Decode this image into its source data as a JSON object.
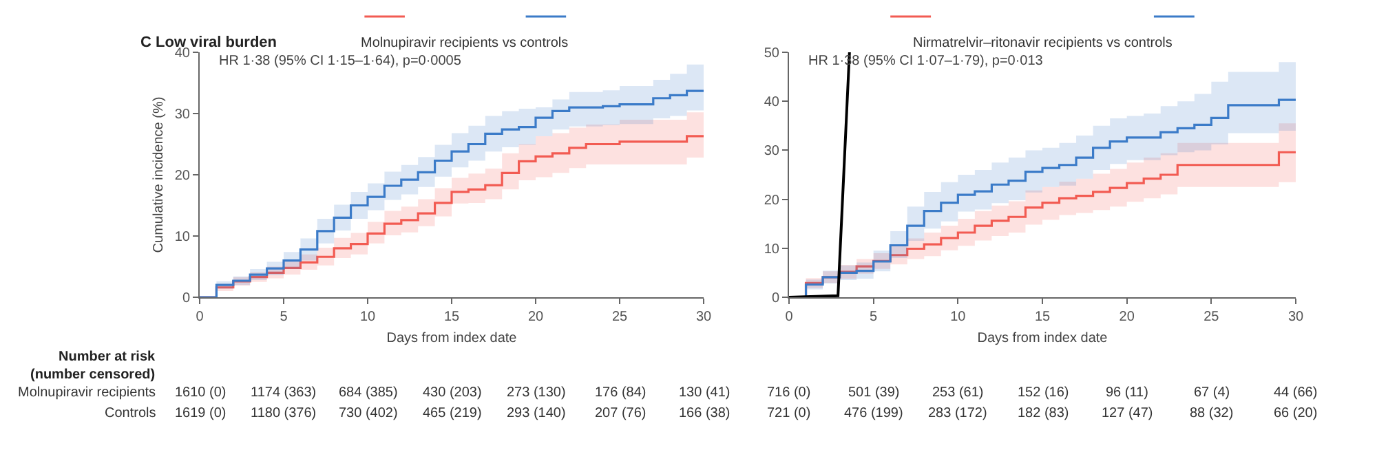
{
  "chart_data": [
    {
      "type": "step",
      "title": "C Low viral burden",
      "legend_title": "Molnupiravir recipients vs controls",
      "xlabel": "Days from index date",
      "ylabel": "Cumulative incidence (%)",
      "xlim": [
        0,
        30
      ],
      "xticks": [
        0,
        5,
        10,
        15,
        20,
        25,
        30
      ],
      "ylim": [
        0,
        40
      ],
      "yticks": [
        0,
        10,
        20,
        30,
        40
      ],
      "grid": false,
      "series": [
        {
          "color": "#f25b52",
          "x": [
            0,
            1,
            2,
            3,
            4,
            5,
            6,
            7,
            8,
            9,
            10,
            11,
            12,
            13,
            14,
            15,
            16,
            17,
            18,
            19,
            20,
            21,
            22,
            23,
            25,
            29,
            30
          ],
          "values": [
            0,
            1.6,
            2.6,
            3.3,
            4.0,
            4.8,
            5.7,
            6.6,
            8.0,
            8.7,
            10.4,
            12.0,
            12.6,
            13.7,
            15.4,
            17.2,
            17.6,
            18.3,
            20.3,
            22.2,
            23.0,
            23.5,
            24.4,
            25.0,
            25.4,
            26.3,
            26.3
          ],
          "upper": [
            0,
            2.2,
            3.3,
            4.1,
            5.0,
            6.0,
            7.0,
            8.1,
            9.7,
            10.5,
            12.3,
            14.1,
            14.8,
            16.0,
            17.8,
            19.5,
            20.2,
            21.0,
            23.5,
            25.0,
            26.3,
            26.8,
            27.7,
            28.2,
            29.0,
            30.2,
            30.2
          ],
          "lower": [
            0,
            1.0,
            1.9,
            2.5,
            3.1,
            3.7,
            4.5,
            5.2,
            6.4,
            7.0,
            8.8,
            10.1,
            10.6,
            11.6,
            13.2,
            15.3,
            15.4,
            16.0,
            17.6,
            19.1,
            19.6,
            20.3,
            21.1,
            21.7,
            21.7,
            22.8,
            22.8
          ]
        },
        {
          "color": "#3b7bc8",
          "x": [
            0,
            1,
            2,
            3,
            4,
            5,
            6,
            7,
            8,
            9,
            10,
            11,
            12,
            13,
            14,
            15,
            16,
            17,
            18,
            19,
            20,
            21,
            22,
            24,
            25,
            27,
            28,
            29,
            30
          ],
          "values": [
            0,
            2.0,
            2.7,
            3.7,
            4.7,
            6.0,
            7.8,
            10.8,
            13.0,
            15.0,
            16.4,
            18.2,
            19.2,
            20.4,
            22.3,
            23.8,
            25.0,
            26.7,
            27.4,
            27.8,
            29.3,
            30.4,
            31.0,
            31.2,
            31.5,
            32.5,
            33.0,
            33.7,
            33.7
          ],
          "upper": [
            0,
            2.6,
            3.4,
            4.6,
            5.8,
            7.4,
            9.6,
            12.8,
            15.1,
            17.2,
            18.6,
            20.5,
            21.6,
            22.9,
            24.9,
            26.8,
            28.0,
            29.6,
            30.4,
            30.8,
            31.0,
            32.3,
            33.5,
            33.8,
            34.5,
            35.5,
            36.5,
            38.0,
            38.0
          ],
          "lower": [
            0,
            1.4,
            2.0,
            2.8,
            3.6,
            4.6,
            6.0,
            8.8,
            10.9,
            12.8,
            14.2,
            15.9,
            16.8,
            18.0,
            19.7,
            21.2,
            22.3,
            23.8,
            24.5,
            24.9,
            26.3,
            27.4,
            27.9,
            28.1,
            28.3,
            29.2,
            29.6,
            30.5,
            30.5
          ]
        }
      ],
      "annotations": [
        "HR 1·38 (95% CI 1·15–1·64), p=0·0005",
        "Number at risk\n(number censored)",
        "Molnupiravir recipients",
        "Controls",
        "1610 (0)",
        "1174 (363)",
        "684 (385)",
        "430 (203)",
        "273 (130)",
        "176 (84)",
        "130 (41)",
        "1619 (0)",
        "1180 (376)",
        "730 (402)",
        "465 (219)",
        "293 (140)",
        "207 (76)",
        "166 (38)"
      ]
    },
    {
      "type": "step",
      "legend_title": "Nirmatrelvir–ritonavir recipients vs controls",
      "xlabel": "Days from index date",
      "xlim": [
        0,
        30
      ],
      "xticks": [
        0,
        5,
        10,
        15,
        20,
        25,
        30
      ],
      "ylim": [
        0,
        50
      ],
      "yticks": [
        0,
        10,
        20,
        30,
        40,
        50
      ],
      "grid": false,
      "series": [
        {
          "color": "#f25b52",
          "x": [
            0,
            1,
            2,
            3,
            4,
            5,
            6,
            7,
            8,
            9,
            10,
            11,
            12,
            13,
            14,
            15,
            16,
            17,
            18,
            19,
            20,
            21,
            22,
            23,
            29,
            30
          ],
          "values": [
            0,
            2.9,
            4.1,
            5.2,
            6.3,
            7.4,
            8.6,
            9.9,
            10.8,
            12.1,
            13.2,
            14.6,
            15.6,
            16.4,
            18.3,
            19.3,
            20.2,
            20.7,
            21.5,
            22.3,
            23.3,
            24.2,
            25.0,
            27.0,
            29.6,
            29.6
          ],
          "upper": [
            0,
            3.9,
            5.3,
            6.6,
            7.8,
            9.0,
            10.5,
            12.0,
            13.2,
            14.6,
            16.0,
            17.6,
            18.7,
            19.6,
            21.8,
            22.5,
            23.6,
            24.2,
            25.2,
            26.2,
            27.5,
            28.5,
            29.4,
            31.5,
            35.5,
            35.5
          ],
          "lower": [
            0,
            1.9,
            2.9,
            3.8,
            4.8,
            5.8,
            6.7,
            7.8,
            8.4,
            9.6,
            10.5,
            11.6,
            12.5,
            13.2,
            14.8,
            15.8,
            16.8,
            17.2,
            17.8,
            18.5,
            19.5,
            20.2,
            21.0,
            22.5,
            23.5,
            23.5
          ]
        },
        {
          "color": "#3b7bc8",
          "x": [
            0,
            1,
            2,
            3,
            4,
            5,
            6,
            7,
            8,
            9,
            10,
            11,
            12,
            13,
            14,
            15,
            16,
            17,
            18,
            19,
            20,
            21,
            22,
            23,
            24,
            25,
            26,
            29,
            30
          ],
          "values": [
            0,
            2.6,
            4.1,
            5.0,
            5.4,
            7.3,
            10.6,
            14.6,
            17.6,
            19.3,
            20.9,
            21.6,
            23.0,
            23.8,
            25.6,
            26.4,
            27.0,
            28.5,
            30.5,
            31.8,
            32.6,
            32.6,
            33.7,
            34.5,
            35.2,
            36.6,
            39.2,
            40.3,
            40.3
          ],
          "upper": [
            0,
            3.6,
            5.4,
            6.5,
            7.1,
            9.5,
            13.5,
            18.5,
            21.5,
            23.5,
            25.0,
            26.0,
            27.5,
            28.5,
            30.0,
            30.5,
            31.5,
            33.0,
            35.0,
            36.5,
            37.0,
            37.5,
            39.0,
            40.0,
            41.5,
            44.0,
            46.0,
            48.0,
            48.0
          ],
          "lower": [
            0,
            1.6,
            2.8,
            3.5,
            3.8,
            5.3,
            8.0,
            11.5,
            14.0,
            15.5,
            17.5,
            17.9,
            19.2,
            19.8,
            21.4,
            22.5,
            22.8,
            24.2,
            26.0,
            27.2,
            28.0,
            28.0,
            29.0,
            29.6,
            30.0,
            31.2,
            33.5,
            34.0,
            34.0
          ]
        },
        {
          "type": "line",
          "color": "#000000",
          "x": [
            0,
            2.9,
            3.58
          ],
          "values": [
            0,
            0.3,
            50
          ]
        }
      ],
      "annotations": [
        "HR 1·38 (95% CI 1·07–1·79), p=0·013",
        "716 (0)",
        "501 (39)",
        "253 (61)",
        "152 (16)",
        "96 (11)",
        "67 (4)",
        "44 (66)",
        "721 (0)",
        "476 (199)",
        "283 (172)",
        "182 (83)",
        "127 (47)",
        "88 (32)",
        "66 (20)"
      ]
    }
  ]
}
